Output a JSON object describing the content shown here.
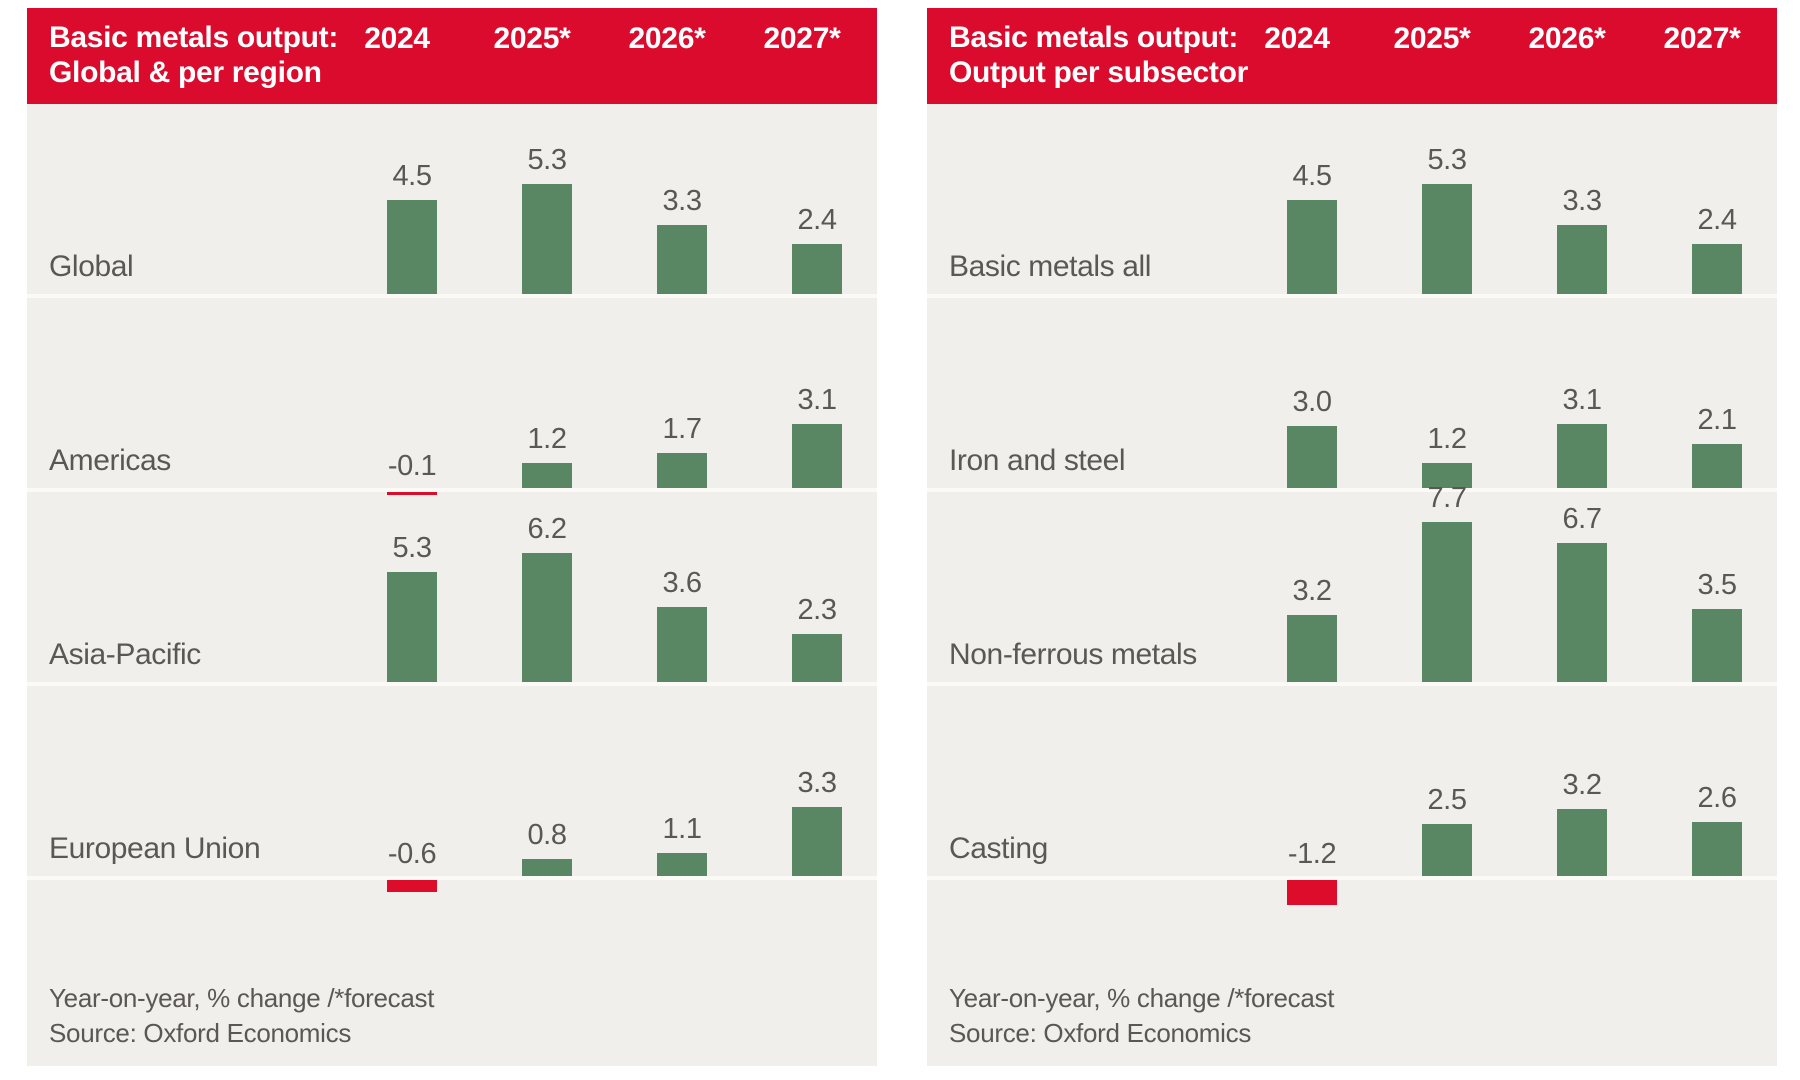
{
  "colors": {
    "header_background": "#da0b2c",
    "positive_bar": "#598663",
    "negative_bar": "#dc0c2a",
    "panel_background": "#f1efec",
    "baseline": "#fbfaf7",
    "text_gray": "#5b5753",
    "header_text": "#ffffff"
  },
  "chart_data": [
    {
      "type": "bar",
      "title": "Basic metals output: Global & per region",
      "title_line1": "Basic metals output:",
      "title_line2": "Global & per region",
      "columns": [
        "2024",
        "2025*",
        "2026*",
        "2027*"
      ],
      "rows": [
        {
          "label": "Global",
          "values": [
            4.5,
            5.3,
            3.3,
            2.4
          ],
          "value_labels": [
            "4.5",
            "5.3",
            "3.3",
            "2.4"
          ]
        },
        {
          "label": "Americas",
          "values": [
            -0.1,
            1.2,
            1.7,
            3.1
          ],
          "value_labels": [
            "-0.1",
            "1.2",
            "1.7",
            "3.1"
          ]
        },
        {
          "label": "Asia-Pacific",
          "values": [
            5.3,
            6.2,
            3.6,
            2.3
          ],
          "value_labels": [
            "5.3",
            "6.2",
            "3.6",
            "2.3"
          ]
        },
        {
          "label": "European Union",
          "values": [
            -0.6,
            0.8,
            1.1,
            3.3
          ],
          "value_labels": [
            "-0.6",
            "0.8",
            "1.1",
            "3.3"
          ]
        }
      ],
      "ylabel": "Year-on-year, % change",
      "note": "Year-on-year, % change /*forecast",
      "source": "Source: Oxford Economics",
      "legend_position": "none",
      "grid": false
    },
    {
      "type": "bar",
      "title": "Basic metals output: Output per subsector",
      "title_line1": "Basic metals output:",
      "title_line2": "Output per subsector",
      "columns": [
        "2024",
        "2025*",
        "2026*",
        "2027*"
      ],
      "rows": [
        {
          "label": "Basic metals all",
          "values": [
            4.5,
            5.3,
            3.3,
            2.4
          ],
          "value_labels": [
            "4.5",
            "5.3",
            "3.3",
            "2.4"
          ]
        },
        {
          "label": "Iron and steel",
          "values": [
            3.0,
            1.2,
            3.1,
            2.1
          ],
          "value_labels": [
            "3.0",
            "1.2",
            "3.1",
            "2.1"
          ]
        },
        {
          "label": "Non-ferrous metals",
          "values": [
            3.2,
            7.7,
            6.7,
            3.5
          ],
          "value_labels": [
            "3.2",
            "7.7",
            "6.7",
            "3.5"
          ]
        },
        {
          "label": "Casting",
          "values": [
            -1.2,
            2.5,
            3.2,
            2.6
          ],
          "value_labels": [
            "-1.2",
            "2.5",
            "3.2",
            "2.6"
          ]
        }
      ],
      "ylabel": "Year-on-year, % change",
      "note": "Year-on-year, % change /*forecast",
      "source": "Source: Oxford Economics",
      "legend_position": "none",
      "grid": false
    }
  ]
}
